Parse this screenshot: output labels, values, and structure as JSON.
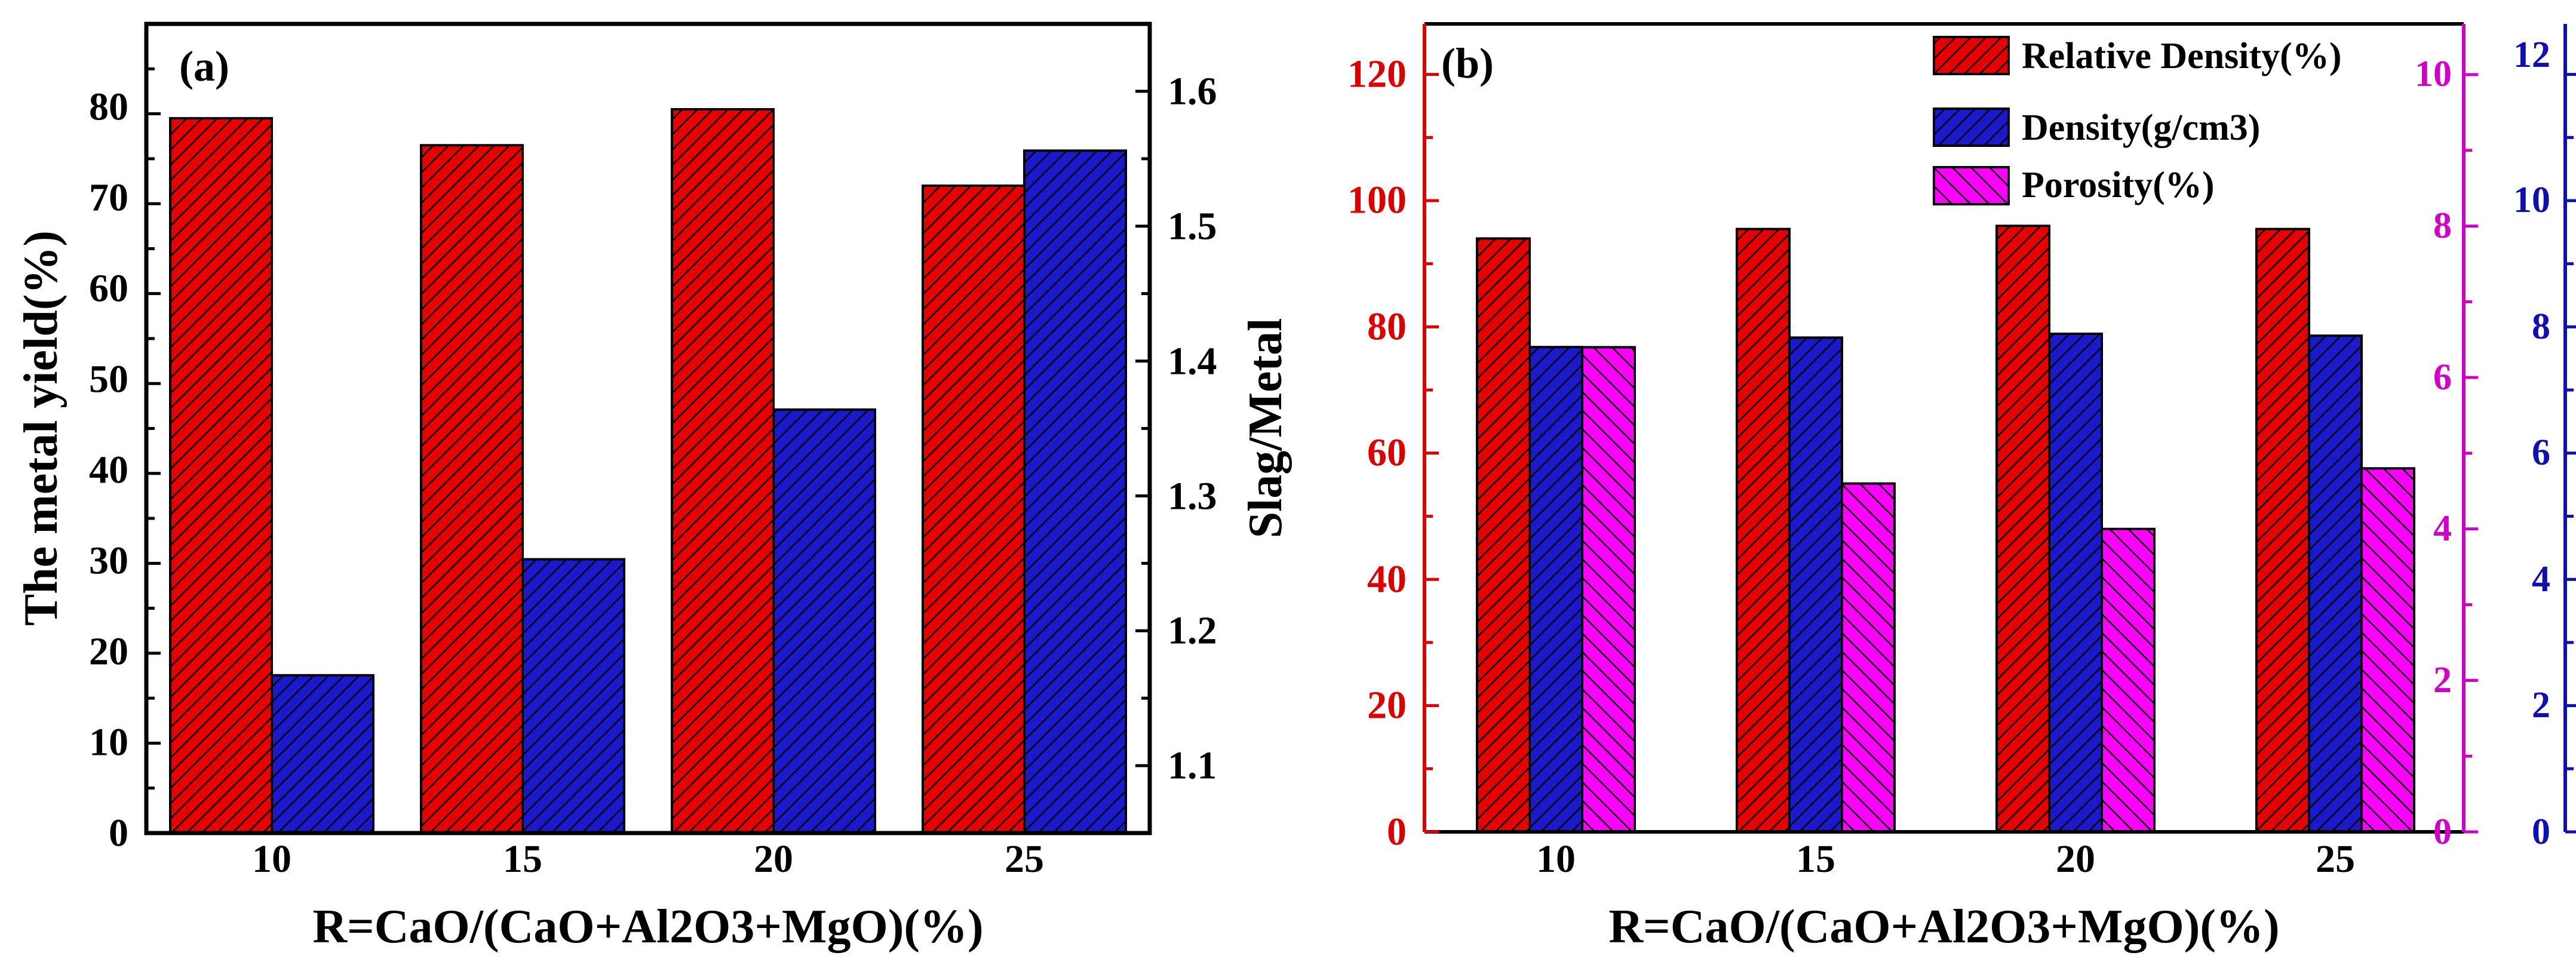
{
  "figure_colors": {
    "red": "#e60000",
    "blue": "#1a1acc",
    "magenta": "#ff00ff",
    "red_axis": "#dd0000",
    "magenta_axis": "#d000c8",
    "blue_axis": "#1010b0",
    "black": "#000000"
  },
  "chart_data": [
    {
      "type": "bar",
      "panel_label": "(a)",
      "categories": [
        "10",
        "15",
        "20",
        "25"
      ],
      "xlabel": "R=CaO/(CaO+Al2O3+MgO)(%)",
      "series": [
        {
          "name": "The metal yield(%)",
          "axis": "left",
          "color": "#e60000",
          "values": [
            79.5,
            76.5,
            80.5,
            72.0
          ]
        },
        {
          "name": "Slag/Metal",
          "axis": "right",
          "color": "#1a1acc",
          "values": [
            1.167,
            1.253,
            1.364,
            1.556
          ]
        }
      ],
      "y_left": {
        "label": "The metal yield(%)",
        "ylim": [
          0,
          90
        ],
        "ticks": [
          "0",
          "10",
          "20",
          "30",
          "40",
          "50",
          "60",
          "70",
          "80"
        ]
      },
      "y_right": {
        "label": "Slag/Metal",
        "ylim": [
          1.05,
          1.65
        ],
        "ticks": [
          "1.1",
          "1.2",
          "1.3",
          "1.4",
          "1.5",
          "1.6"
        ]
      }
    },
    {
      "type": "bar",
      "panel_label": "(b)",
      "categories": [
        "10",
        "15",
        "20",
        "25"
      ],
      "xlabel": "R=CaO/(CaO+Al2O3+MgO)(%)",
      "series": [
        {
          "name": "Relative Density(%)",
          "axis": "red",
          "color": "#e60000",
          "values": [
            94,
            95.5,
            96,
            95.5
          ]
        },
        {
          "name": "Density(g/cm3)",
          "axis": "blue",
          "color": "#1a1acc",
          "values": [
            7.68,
            7.83,
            7.89,
            7.86
          ]
        },
        {
          "name": "Porosity(%)",
          "axis": "magenta",
          "color": "#ff00ff",
          "values": [
            6.4,
            4.6,
            4.0,
            4.8
          ]
        }
      ],
      "y_red": {
        "ylim": [
          0,
          128
        ],
        "ticks": [
          "0",
          "20",
          "40",
          "60",
          "80",
          "100",
          "120"
        ]
      },
      "y_magenta": {
        "ylim": [
          0,
          10.67
        ],
        "ticks": [
          "0",
          "2",
          "4",
          "6",
          "8",
          "10"
        ]
      },
      "y_blue": {
        "ylim": [
          0,
          12.8
        ],
        "ticks": [
          "0",
          "2",
          "4",
          "6",
          "8",
          "10",
          "12"
        ]
      },
      "legend": {
        "placement": "top-right",
        "entries": [
          "Relative Density(%)",
          "Density(g/cm3)",
          "Porosity(%)"
        ]
      }
    }
  ]
}
